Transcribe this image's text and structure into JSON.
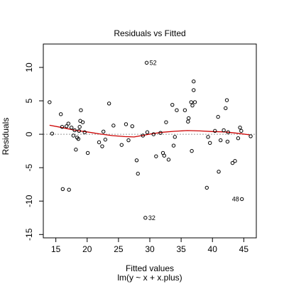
{
  "chart_data": {
    "type": "scatter",
    "title": "Residuals vs Fitted",
    "xlabel": "Fitted values",
    "subxlabel": "lm(y ~ x + x.plus)",
    "ylabel": "Residuals",
    "xlim": [
      13,
      47
    ],
    "ylim": [
      -15.5,
      13.5
    ],
    "xticks": [
      15,
      20,
      25,
      30,
      35,
      40,
      45
    ],
    "yticks": [
      -15,
      -10,
      -5,
      0,
      5,
      10
    ],
    "reference_line": 0,
    "colors": {
      "points": "#000000",
      "smooth": "#cc0000",
      "reference": "#999999"
    },
    "points": [
      [
        14.0,
        4.8
      ],
      [
        14.4,
        0.1
      ],
      [
        15.8,
        3.0
      ],
      [
        16.0,
        1.1
      ],
      [
        16.1,
        -8.2
      ],
      [
        16.7,
        1.2
      ],
      [
        17.0,
        1.6
      ],
      [
        17.1,
        -8.3
      ],
      [
        17.5,
        1.0
      ],
      [
        17.8,
        -0.2
      ],
      [
        18.0,
        0.6
      ],
      [
        18.2,
        -2.3
      ],
      [
        18.4,
        -0.5
      ],
      [
        18.6,
        -0.7
      ],
      [
        18.7,
        0.5
      ],
      [
        18.8,
        1.1
      ],
      [
        18.9,
        2.0
      ],
      [
        19.0,
        3.6
      ],
      [
        19.3,
        1.8
      ],
      [
        19.6,
        0.3
      ],
      [
        20.1,
        -2.8
      ],
      [
        21.9,
        -1.2
      ],
      [
        22.4,
        -1.8
      ],
      [
        22.6,
        0.4
      ],
      [
        22.9,
        -0.8
      ],
      [
        23.5,
        4.6
      ],
      [
        24.2,
        1.3
      ],
      [
        25.5,
        -1.6
      ],
      [
        26.2,
        1.5
      ],
      [
        26.6,
        -0.9
      ],
      [
        27.2,
        1.2
      ],
      [
        27.9,
        -3.9
      ],
      [
        28.1,
        -5.9
      ],
      [
        28.9,
        -0.2
      ],
      [
        29.5,
        10.7
      ],
      [
        29.6,
        0.3
      ],
      [
        29.3,
        -12.5
      ],
      [
        30.6,
        0.0
      ],
      [
        31.0,
        -3.3
      ],
      [
        31.7,
        0.2
      ],
      [
        32.1,
        -2.8
      ],
      [
        32.3,
        -3.2
      ],
      [
        32.6,
        1.8
      ],
      [
        33.0,
        -3.8
      ],
      [
        33.6,
        4.4
      ],
      [
        33.8,
        -1.7
      ],
      [
        34.0,
        -0.4
      ],
      [
        34.3,
        3.6
      ],
      [
        35.6,
        3.6
      ],
      [
        36.1,
        1.9
      ],
      [
        36.2,
        2.4
      ],
      [
        36.6,
        4.8
      ],
      [
        36.7,
        -2.5
      ],
      [
        36.8,
        4.3
      ],
      [
        37.0,
        6.6
      ],
      [
        37.0,
        7.9
      ],
      [
        37.2,
        4.8
      ],
      [
        39.1,
        -8.0
      ],
      [
        39.3,
        -0.4
      ],
      [
        39.6,
        -1.3
      ],
      [
        40.4,
        0.5
      ],
      [
        40.9,
        2.6
      ],
      [
        41.0,
        -5.6
      ],
      [
        41.3,
        -0.9
      ],
      [
        41.8,
        0.6
      ],
      [
        42.1,
        3.9
      ],
      [
        42.3,
        5.1
      ],
      [
        42.4,
        -1.1
      ],
      [
        42.5,
        0.3
      ],
      [
        43.2,
        -4.3
      ],
      [
        43.6,
        -4.0
      ],
      [
        44.1,
        -0.6
      ],
      [
        44.4,
        1.0
      ],
      [
        44.6,
        0.5
      ],
      [
        44.7,
        -9.7
      ],
      [
        46.1,
        -0.3
      ]
    ],
    "labels": [
      {
        "text": "52",
        "x": 29.5,
        "y": 10.7
      },
      {
        "text": "32",
        "x": 29.3,
        "y": -12.5
      },
      {
        "text": "48",
        "x": 44.7,
        "y": -9.7
      }
    ],
    "smooth": [
      [
        14.0,
        1.35
      ],
      [
        16.0,
        1.0
      ],
      [
        18.0,
        0.6
      ],
      [
        20.0,
        0.35
      ],
      [
        22.0,
        0.05
      ],
      [
        24.0,
        -0.2
      ],
      [
        26.0,
        -0.35
      ],
      [
        27.5,
        -0.4
      ],
      [
        29.0,
        -0.15
      ],
      [
        30.5,
        0.1
      ],
      [
        32.0,
        0.3
      ],
      [
        34.0,
        0.45
      ],
      [
        36.0,
        0.55
      ],
      [
        38.0,
        0.5
      ],
      [
        40.0,
        0.4
      ],
      [
        42.0,
        0.35
      ],
      [
        44.0,
        0.15
      ],
      [
        46.0,
        -0.1
      ]
    ]
  }
}
